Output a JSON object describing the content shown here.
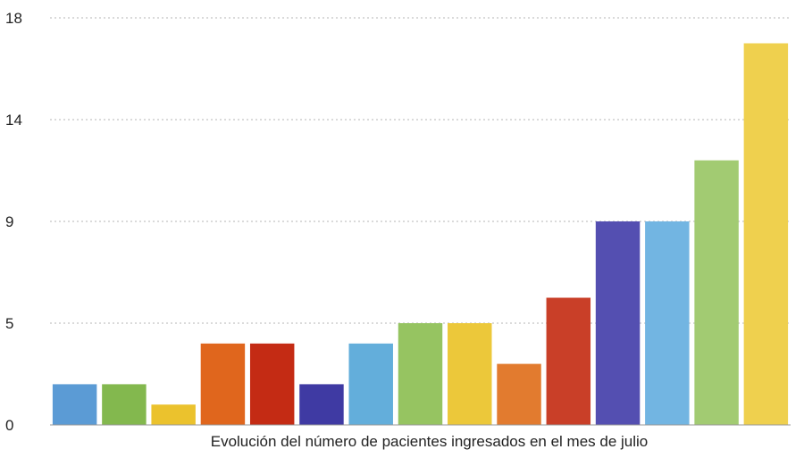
{
  "chart_data": {
    "type": "bar",
    "title": "",
    "xlabel": "Evolución del número de pacientes ingresados en el mes de julio",
    "ylabel": "",
    "y_tick_labels": [
      "0",
      "5",
      "9",
      "14",
      "18"
    ],
    "ylim": [
      0,
      18
    ],
    "grid": true,
    "values": [
      2,
      2,
      1,
      4,
      4,
      2,
      4,
      5,
      5,
      3,
      6,
      9,
      9,
      12,
      17
    ],
    "colors": [
      "#5b9bd5",
      "#83b84e",
      "#ebc22d",
      "#e0661d",
      "#c42b14",
      "#3f3aa3",
      "#63aedb",
      "#96c461",
      "#ecc83a",
      "#e27b2f",
      "#c93f28",
      "#544fb1",
      "#72b5e2",
      "#a2cb72",
      "#efd04e"
    ]
  }
}
